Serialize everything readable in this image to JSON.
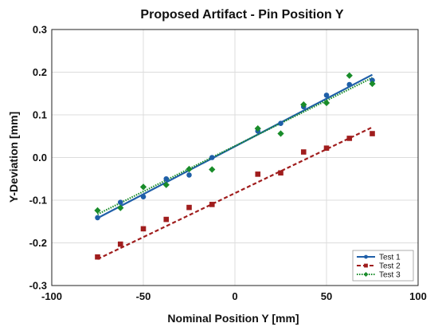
{
  "chart_data": {
    "type": "scatter",
    "title": "Proposed Artifact - Pin Position Y",
    "xlabel": "Nominal Position Y [mm]",
    "ylabel": "Y-Deviation [mm]",
    "xlim": [
      -100,
      100
    ],
    "ylim": [
      -0.3,
      0.3
    ],
    "xticks": [
      -100,
      -50,
      0,
      50,
      100
    ],
    "yticks": [
      -0.3,
      -0.2,
      -0.1,
      0.0,
      0.1,
      0.2,
      0.3
    ],
    "xtick_labels": [
      "-100",
      "-50",
      "0",
      "50",
      "100"
    ],
    "ytick_labels": [
      "-0.3",
      "-0.2",
      "-0.1",
      "0.0",
      "0.1",
      "0.2",
      "0.3"
    ],
    "grid": true,
    "legend_position": "bottom-right",
    "series": [
      {
        "name": "Test 1",
        "color": "#1f5fa8",
        "marker": "circle",
        "line_style": "solid",
        "x": [
          -75,
          -62.5,
          -50,
          -37.5,
          -25,
          -12.5,
          12.5,
          25,
          37.5,
          50,
          62.5,
          75
        ],
        "y": [
          -0.141,
          -0.105,
          -0.092,
          -0.05,
          -0.041,
          0.0,
          0.062,
          0.08,
          0.119,
          0.146,
          0.171,
          0.181
        ],
        "fit": [
          [
            -75,
            -0.142
          ],
          [
            75,
            0.194
          ]
        ]
      },
      {
        "name": "Test 2",
        "color": "#a01d1d",
        "marker": "square",
        "line_style": "dashed",
        "x": [
          -75,
          -62.5,
          -50,
          -37.5,
          -25,
          -12.5,
          12.5,
          25,
          37.5,
          50,
          62.5,
          75
        ],
        "y": [
          -0.233,
          -0.203,
          -0.167,
          -0.145,
          -0.117,
          -0.11,
          -0.039,
          -0.036,
          0.013,
          0.022,
          0.045,
          0.056
        ],
        "fit": [
          [
            -75,
            -0.238
          ],
          [
            75,
            0.071
          ]
        ]
      },
      {
        "name": "Test 3",
        "color": "#198c2a",
        "marker": "diamond",
        "line_style": "dotted",
        "x": [
          -75,
          -62.5,
          -50,
          -37.5,
          -25,
          -12.5,
          12.5,
          25,
          37.5,
          50,
          62.5,
          75
        ],
        "y": [
          -0.124,
          -0.118,
          -0.069,
          -0.064,
          -0.027,
          -0.028,
          0.068,
          0.056,
          0.124,
          0.128,
          0.192,
          0.173
        ],
        "fit": [
          [
            -75,
            -0.133
          ],
          [
            75,
            0.187
          ]
        ]
      }
    ]
  }
}
